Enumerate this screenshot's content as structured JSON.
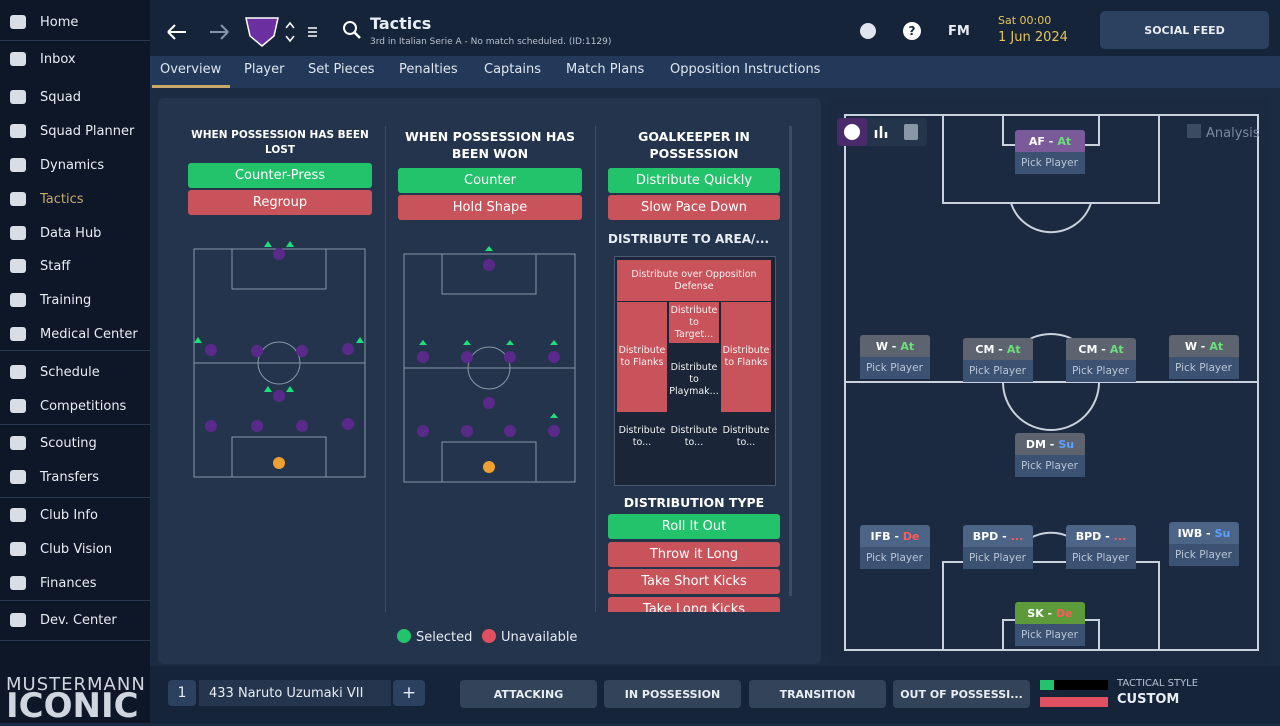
{
  "sidebar": {
    "items": [
      "Home",
      "Inbox",
      "Squad",
      "Squad Planner",
      "Dynamics",
      "Tactics",
      "Data Hub",
      "Staff",
      "Training",
      "Medical Center",
      "Schedule",
      "Competitions",
      "Scouting",
      "Transfers",
      "Club Info",
      "Club Vision",
      "Finances",
      "Dev. Center"
    ],
    "active": 5,
    "brand_top": "MUSTERMANN",
    "brand_bottom": "ICONIC"
  },
  "header": {
    "title": "Tactics",
    "subtitle": "3rd in Italian Serie A - No match scheduled. (ID:1129)",
    "fm": "FM",
    "day": "Sat 00:00",
    "date": "1 Jun 2024",
    "social": "SOCIAL FEED"
  },
  "tabs": {
    "items": [
      "Overview",
      "Player",
      "Set Pieces",
      "Penalties",
      "Captains",
      "Match Plans",
      "Opposition Instructions"
    ],
    "active": 0
  },
  "columns": [
    {
      "title": "WHEN POSSESSION HAS BEEN LOST",
      "options": [
        {
          "label": "Counter-Press",
          "state": "selected"
        },
        {
          "label": "Regroup",
          "state": "unavailable"
        }
      ]
    },
    {
      "title": "WHEN POSSESSION HAS BEEN WON",
      "options": [
        {
          "label": "Counter",
          "state": "selected"
        },
        {
          "label": "Hold Shape",
          "state": "unavailable"
        }
      ]
    },
    {
      "title": "GOALKEEPER IN POSSESSION",
      "options": [
        {
          "label": "Distribute Quickly",
          "state": "selected"
        },
        {
          "label": "Slow Pace Down",
          "state": "unavailable"
        }
      ]
    }
  ],
  "distribute_area": {
    "title": "DISTRIBUTE TO AREA/...",
    "zones": [
      {
        "label": "Distribute over Opposition Defense",
        "state": "unavailable"
      },
      {
        "label": "Distribute to Flanks",
        "state": "unavailable"
      },
      {
        "label": "Distribute to Target...",
        "state": "unavailable"
      },
      {
        "label": "Distribute to Playmak...",
        "state": "none"
      },
      {
        "label": "Distribute to Flanks",
        "state": "unavailable"
      },
      {
        "label": "Distribute to...",
        "state": "none"
      },
      {
        "label": "Distribute to...",
        "state": "none"
      },
      {
        "label": "Distribute to...",
        "state": "none"
      }
    ]
  },
  "distribution_type": {
    "title": "DISTRIBUTION TYPE",
    "options": [
      {
        "label": "Roll It Out",
        "state": "selected"
      },
      {
        "label": "Throw it Long",
        "state": "unavailable"
      },
      {
        "label": "Take Short Kicks",
        "state": "unavailable"
      },
      {
        "label": "Take Long Kicks",
        "state": "unavailable"
      }
    ]
  },
  "legend": {
    "selected": "Selected",
    "unavailable": "Unavailable"
  },
  "pitch": {
    "analysis": "Analysis",
    "players": [
      {
        "role": "AF -",
        "duty": "At",
        "pick": "Pick Player",
        "duty_color": "#6be07a",
        "head": "#7b5a9a"
      },
      {
        "role": "W -",
        "duty": "At",
        "pick": "Pick Player",
        "duty_color": "#6be07a",
        "head": "#5d6470"
      },
      {
        "role": "CM -",
        "duty": "At",
        "pick": "Pick Player",
        "duty_color": "#6be07a",
        "head": "#5d6470"
      },
      {
        "role": "CM -",
        "duty": "At",
        "pick": "Pick Player",
        "duty_color": "#6be07a",
        "head": "#5d6470"
      },
      {
        "role": "W -",
        "duty": "At",
        "pick": "Pick Player",
        "duty_color": "#6be07a",
        "head": "#5d6470"
      },
      {
        "role": "DM -",
        "duty": "Su",
        "pick": "Pick Player",
        "duty_color": "#5aa0ff",
        "head": "#5d6470"
      },
      {
        "role": "IFB -",
        "duty": "De",
        "pick": "Pick Player",
        "duty_color": "#ff5a5a",
        "head": "#4c6586"
      },
      {
        "role": "BPD -",
        "duty": "...",
        "pick": "Pick Player",
        "duty_color": "#ff5a5a",
        "head": "#4c6586"
      },
      {
        "role": "BPD -",
        "duty": "...",
        "pick": "Pick Player",
        "duty_color": "#ff5a5a",
        "head": "#4c6586"
      },
      {
        "role": "IWB -",
        "duty": "Su",
        "pick": "Pick Player",
        "duty_color": "#5aa0ff",
        "head": "#4c6586"
      },
      {
        "role": "SK -",
        "duty": "De",
        "pick": "Pick Player",
        "duty_color": "#ff5a5a",
        "head": "#5d9a3a"
      }
    ]
  },
  "footer": {
    "slot": "1",
    "tactic": "433 Naruto Uzumaki VII",
    "add": "+",
    "phases": [
      "ATTACKING",
      "IN POSSESSION",
      "TRANSITION",
      "OUT OF POSSESSI..."
    ],
    "style_label": "TACTICAL STYLE",
    "style_value": "CUSTOM"
  }
}
